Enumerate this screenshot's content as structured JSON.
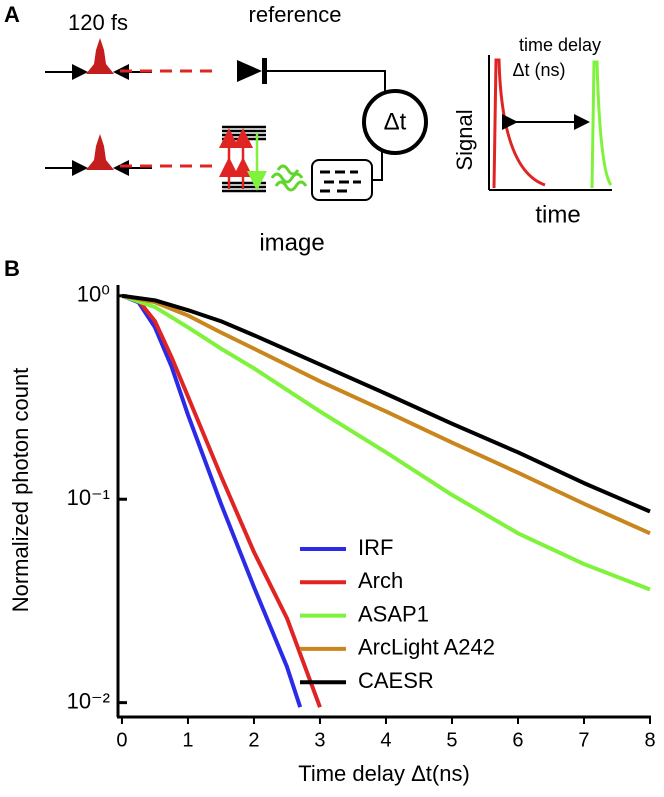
{
  "panel_labels": {
    "a": "A",
    "b": "B"
  },
  "diagram": {
    "pulse_duration": "120 fs",
    "reference": "reference",
    "delay_symbol": "Δt",
    "image": "image",
    "inset": {
      "title": "time delay",
      "unit": "Δt (ns)",
      "y_label": "Signal",
      "x_label": "time"
    }
  },
  "chart_data": {
    "type": "line",
    "x_label": "Time delay Δt(ns)",
    "y_label": "Normalized photon count",
    "log_y": true,
    "xlim": [
      -0.06,
      8
    ],
    "xticks": [
      0,
      1,
      2,
      3,
      4,
      5,
      6,
      7,
      8
    ],
    "ylim": [
      0.0085,
      1.13
    ],
    "yticks": [
      {
        "value": 1,
        "label": "10⁰"
      },
      {
        "value": 0.1,
        "label": "10⁻¹"
      },
      {
        "value": 0.01,
        "label": "10⁻²"
      }
    ],
    "legend": "bottom-center",
    "series": [
      {
        "name": "IRF",
        "color": "#2a2ae8",
        "x": [
          0,
          0.25,
          0.5,
          0.75,
          1,
          1.5,
          2,
          2.5,
          2.7
        ],
        "values": [
          1,
          0.93,
          0.7,
          0.45,
          0.26,
          0.095,
          0.037,
          0.015,
          0.0095
        ]
      },
      {
        "name": "Arch",
        "color": "#e02424",
        "x": [
          0,
          0.25,
          0.5,
          0.75,
          1,
          1.5,
          2,
          2.5,
          3
        ],
        "values": [
          1,
          0.95,
          0.75,
          0.5,
          0.32,
          0.13,
          0.055,
          0.026,
          0.0095
        ]
      },
      {
        "name": "ASAP1",
        "color": "#7ff23c",
        "x": [
          0,
          0.5,
          1,
          1.5,
          2,
          3,
          4,
          5,
          6,
          7,
          8
        ],
        "values": [
          1,
          0.88,
          0.7,
          0.55,
          0.44,
          0.27,
          0.17,
          0.105,
          0.068,
          0.048,
          0.036
        ]
      },
      {
        "name": "ArcLight A242",
        "color": "#c8861c",
        "x": [
          0,
          0.5,
          1,
          1.5,
          2,
          3,
          4,
          5,
          6,
          7,
          8
        ],
        "values": [
          1,
          0.93,
          0.8,
          0.66,
          0.55,
          0.38,
          0.27,
          0.19,
          0.135,
          0.095,
          0.068
        ]
      },
      {
        "name": "CAESR",
        "color": "#000000",
        "x": [
          0,
          0.5,
          1,
          1.5,
          2,
          3,
          4,
          5,
          6,
          7,
          8
        ],
        "values": [
          1,
          0.95,
          0.85,
          0.75,
          0.64,
          0.46,
          0.33,
          0.235,
          0.17,
          0.12,
          0.087
        ]
      }
    ]
  }
}
